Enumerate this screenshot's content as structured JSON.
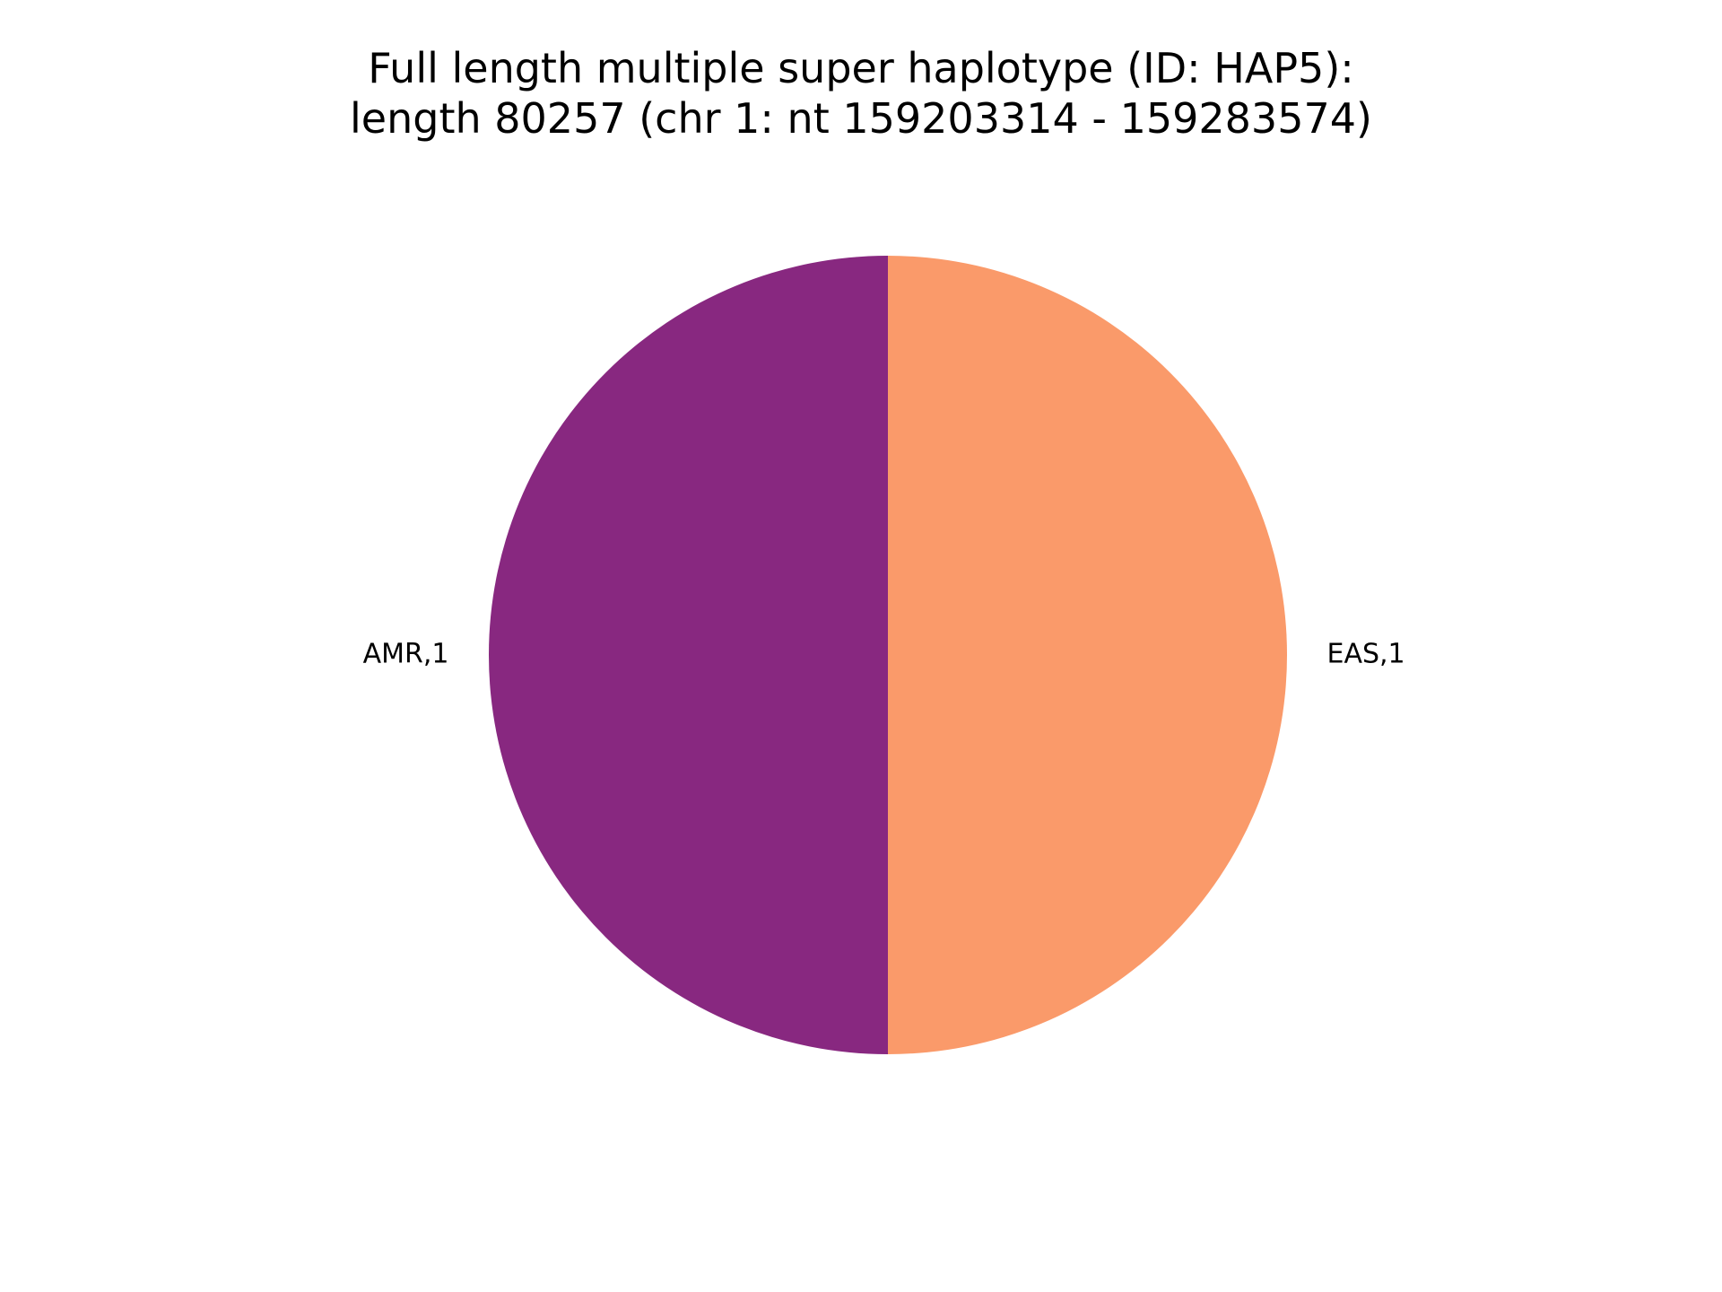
{
  "chart_data": {
    "type": "pie",
    "title_lines": [
      "Full length multiple super haplotype (ID: HAP5):",
      "length 80257 (chr 1: nt 159203314 - 159283574)"
    ],
    "slices": [
      {
        "label": "AMR,1",
        "value": 1,
        "color": "#882880"
      },
      {
        "label": "EAS,1",
        "value": 1,
        "color": "#FA9A6A"
      }
    ],
    "start_angle_deg": 90,
    "direction": "counterclockwise"
  }
}
